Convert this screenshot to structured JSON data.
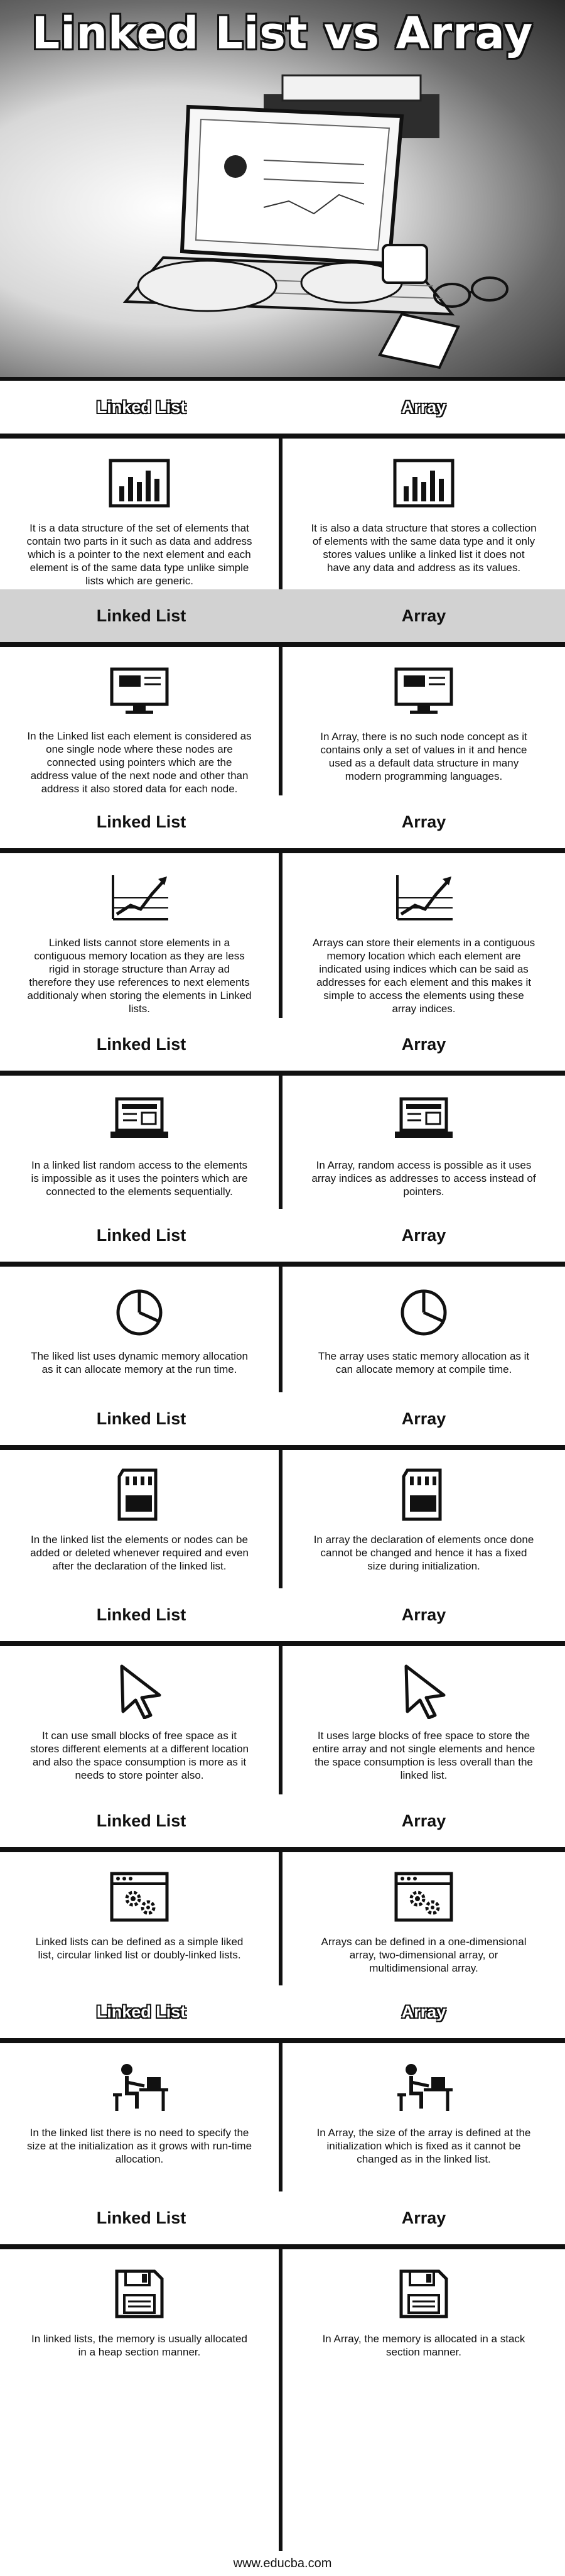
{
  "title": "Linked List vs Array",
  "headers": {
    "left": "Linked List",
    "right": "Array"
  },
  "rows": [
    {
      "left_icon": "bar-chart-icon",
      "right_icon": "bar-chart-icon",
      "left": "It is a data structure of the set of elements that contain two parts in it such as data and address which is a pointer to the next element and each element is of the same data type unlike simple lists which are generic.",
      "right": "It is also a data structure that stores a collection of elements with the same data type and it only stores values unlike a linked list it does not have any data and address as its values."
    },
    {
      "left_icon": "monitor-icon",
      "right_icon": "monitor-icon",
      "left": "In the Linked list each element is considered as one single node where these nodes are connected using pointers which are the address value of the next node and other than address it also stored data for each node.",
      "right": "In Array, there is no such node concept as it contains only a set of values in it and hence used as a default data structure in many modern programming languages."
    },
    {
      "left_icon": "growth-chart-icon",
      "right_icon": "growth-chart-icon",
      "left": "Linked lists cannot store elements in a contiguous memory location as they are less rigid in storage structure than Array ad therefore they use references to next elements additionaly when storing the elements in Linked lists.",
      "right": "Arrays can store their elements in a contiguous memory location which each element are indicated using indices which can be said as addresses for each element and this makes it simple to access the elements using these array indices."
    },
    {
      "left_icon": "laptop-icon",
      "right_icon": "laptop-icon",
      "left": "In a linked list random access to the elements is impossible as it uses the pointers which are connected to the elements sequentially.",
      "right": "In Array, random access is possible as it uses array indices as addresses to access instead of pointers."
    },
    {
      "left_icon": "pie-chart-icon",
      "right_icon": "pie-chart-icon",
      "left": "The liked list uses dynamic memory allocation as it can allocate memory at the run time.",
      "right": "The array uses static memory allocation as it can allocate memory at compile time."
    },
    {
      "left_icon": "sd-card-icon",
      "right_icon": "sd-card-icon",
      "left": "In the linked list the elements or nodes can be added or deleted whenever required and even after the declaration of the linked list.",
      "right": "In array the declaration of elements once done cannot be changed and hence it has a fixed size during initialization."
    },
    {
      "left_icon": "cursor-icon",
      "right_icon": "cursor-icon",
      "left": "It can use small blocks of free space as it stores different elements at a different location and also the space consumption is more as it needs to store pointer also.",
      "right": "It uses large blocks of free space to store the entire array and not single elements and hence the space consumption is less overall than the linked list."
    },
    {
      "left_icon": "settings-window-icon",
      "right_icon": "settings-window-icon",
      "left": "Linked lists can be defined as a simple liked list, circular linked list or doubly-linked lists.",
      "right": "Arrays can be defined in a one-dimensional array, two-dimensional array, or multidimensional array."
    },
    {
      "left_icon": "person-at-desk-icon",
      "right_icon": "person-at-desk-icon",
      "left": "In the linked list there is no need to specify the size at the initialization as it grows with run-time allocation.",
      "right": "In Array, the size of the array is defined at the initialization which is fixed as it cannot be changed as in the linked list."
    },
    {
      "left_icon": "floppy-disk-icon",
      "right_icon": "floppy-disk-icon",
      "left": "In linked lists, the memory is usually allocated in a heap section manner.",
      "right": "In Array, the memory is allocated in a stack section manner."
    }
  ],
  "footer": "www.educba.com"
}
